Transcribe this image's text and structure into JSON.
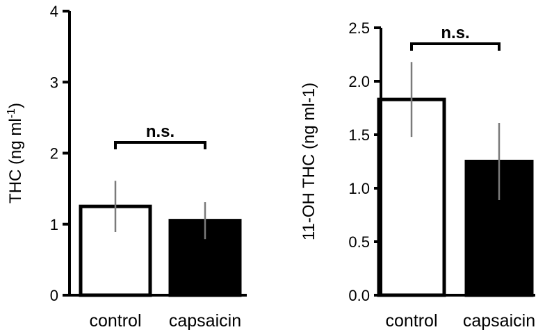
{
  "chart_data": [
    {
      "type": "bar",
      "categories": [
        "control",
        "capsaicin"
      ],
      "values": [
        1.25,
        1.05
      ],
      "errors": [
        0.36,
        0.26
      ],
      "bar_fills": [
        "#ffffff",
        "#000000"
      ],
      "ylabel_main": "THC (ng ml",
      "ylabel_sup": "-1",
      "ylabel_end": ")",
      "ylim": [
        0,
        4
      ],
      "yticks": [
        "0",
        "1",
        "2",
        "3",
        "4"
      ],
      "annotation": "n.s.",
      "grid": false
    },
    {
      "type": "bar",
      "categories": [
        "control",
        "capsaicin"
      ],
      "values": [
        1.83,
        1.25
      ],
      "errors": [
        0.35,
        0.36
      ],
      "bar_fills": [
        "#ffffff",
        "#000000"
      ],
      "ylabel_main": "11-OH THC (ng ml-1)",
      "ylim": [
        0,
        2.5
      ],
      "yticks": [
        "0.0",
        "0.5",
        "1.0",
        "1.5",
        "2.0",
        "2.5"
      ],
      "annotation": "n.s.",
      "grid": false
    }
  ]
}
